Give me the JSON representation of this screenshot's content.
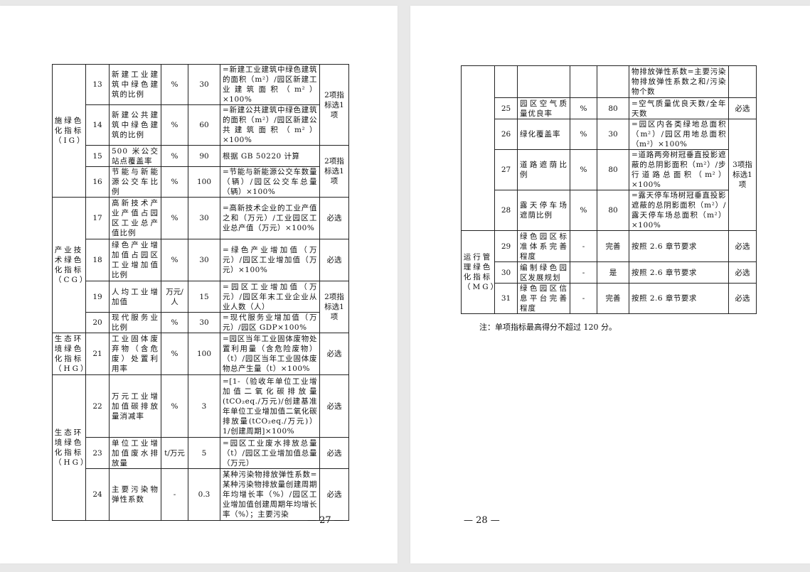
{
  "pages": [
    {
      "page_number": "— 27 —",
      "groups": [
        {
          "label": "施绿色化指标（IG）",
          "rows": [
            {
              "no": "13",
              "name": "新建工业建筑中绿色建筑的比例",
              "unit": "%",
              "value": "30",
              "formula": "=新建工业建筑中绿色建筑的面积（m²）/园区新建工业建筑面积（m²）×100%",
              "remark": "2项指标选1项"
            },
            {
              "no": "14",
              "name": "新建公共建筑中绿色建筑的比例",
              "unit": "%",
              "value": "60",
              "formula": "=新建公共建筑中绿色建筑的面积（m²）/园区新建公共建筑面积（m²）×100%",
              "remark": null
            },
            {
              "no": "15",
              "name": "500 米公交站点覆盖率",
              "unit": "%",
              "value": "90",
              "formula": "根据 GB 50220 计算",
              "remark": "2项指标选1项"
            },
            {
              "no": "16",
              "name": "节能与新能源公交车比例",
              "unit": "%",
              "value": "100",
              "formula": "=节能与新能源公交车数量（辆）/园区公交车总量（辆）×100%",
              "remark": null
            }
          ]
        },
        {
          "label": "产业技术绿色化指标（CG）",
          "rows": [
            {
              "no": "17",
              "name": "高新技术产业产值占园区工业总产值比例",
              "unit": "%",
              "value": "30",
              "formula": "=高新技术企业的工业产值之和（万元）/工业园区工业总产值（万元）×100%",
              "remark": "必选"
            },
            {
              "no": "18",
              "name": "绿色产业增加值占园区工业增加值比例",
              "unit": "%",
              "value": "30",
              "formula": "=绿色产业增加值（万元）/园区工业增加值（万元）×100%",
              "remark": "必选"
            },
            {
              "no": "19",
              "name": "人均工业增加值",
              "unit": "万元/人",
              "value": "15",
              "formula": "=园区工业增加值（万元）/园区年末工业企业从业人数（人）",
              "remark": "2项指标选1项"
            },
            {
              "no": "20",
              "name": "现代服务业比例",
              "unit": "%",
              "value": "30",
              "formula": "=现代服务业增加值（万元）/园区 GDP×100%",
              "remark": null
            }
          ]
        },
        {
          "label": "生态环境绿色化指标（HG）",
          "rows": [
            {
              "no": "21",
              "name": "工业固体废弃物（含危废）处置利用率",
              "unit": "%",
              "value": "100",
              "formula": "=园区当年工业固体废物处置利用量（含危险废物）（t）/园区当年工业固体废物总产生量（t）×100%",
              "remark": "必选"
            }
          ]
        },
        {
          "label": "生态环境绿色化指标（HG）",
          "rows": [
            {
              "no": "22",
              "name": "万元工业增加值碳排放量消减率",
              "unit": "%",
              "value": "3",
              "formula": "=[1-（验收年单位工业增加值二氧化碳排放量(tCO₂eq./万元)/创建基准年单位工业增加值二氧化碳排放量(tCO₂eq./万元)）1/创建周期]×100%",
              "remark": "必选"
            },
            {
              "no": "23",
              "name": "单位工业增加值废水排放量",
              "unit": "t/万元",
              "value": "5",
              "formula": "=园区工业废水排放总量（t）/园区工业增加值总量（万元）",
              "remark": "必选"
            },
            {
              "no": "24",
              "name": "主要污染物弹性系数",
              "unit": "-",
              "value": "0.3",
              "formula": "某种污染物排放弹性系数=某种污染物排放量创建周期年均增长率（%）/园区工业增加值创建周期年均增长率（%）；主要污染",
              "remark": "必选"
            }
          ]
        }
      ]
    },
    {
      "page_number": "— 28 —",
      "groups": [
        {
          "label": "",
          "rows": [
            {
              "no": "",
              "name": "",
              "unit": "",
              "value": "",
              "formula": "物排放弹性系数=主要污染物排放弹性系数之和/污染物个数",
              "remark": ""
            },
            {
              "no": "25",
              "name": "园区空气质量优良率",
              "unit": "%",
              "value": "80",
              "formula": "=空气质量优良天数/全年天数",
              "remark": "必选"
            },
            {
              "no": "26",
              "name": "绿化覆盖率",
              "unit": "%",
              "value": "30",
              "formula": "=园区内各类绿地总面积（m²）/园区用地总面积（m²）×100%",
              "remark": "3项指标选1项"
            },
            {
              "no": "27",
              "name": "道路遮荫比例",
              "unit": "%",
              "value": "80",
              "formula": "=道路两旁树冠垂直投影遮蔽的总阴影面积（m²）/步行道路总面积（m²）×100%",
              "remark": null
            },
            {
              "no": "28",
              "name": "露天停车场遮荫比例",
              "unit": "%",
              "value": "80",
              "formula": "=露天停车场树冠垂直投影遮蔽的总阴影面积（m²）/露天停车场总面积（m²）×100%",
              "remark": null
            }
          ]
        },
        {
          "label": "运行管理绿色化指标（MG）",
          "rows": [
            {
              "no": "29",
              "name": "绿色园区标准体系完善程度",
              "unit": "-",
              "value": "完善",
              "formula": "按照 2.6 章节要求",
              "remark": "必选"
            },
            {
              "no": "30",
              "name": "编制绿色园区发展规划",
              "unit": "-",
              "value": "是",
              "formula": "按照 2.6 章节要求",
              "remark": "必选"
            },
            {
              "no": "31",
              "name": "绿色园区信息平台完善程度",
              "unit": "-",
              "value": "完善",
              "formula": "按照 2.6 章节要求",
              "remark": "必选"
            }
          ]
        }
      ],
      "note": "注：单项指标最高得分不超过 120 分。"
    }
  ]
}
